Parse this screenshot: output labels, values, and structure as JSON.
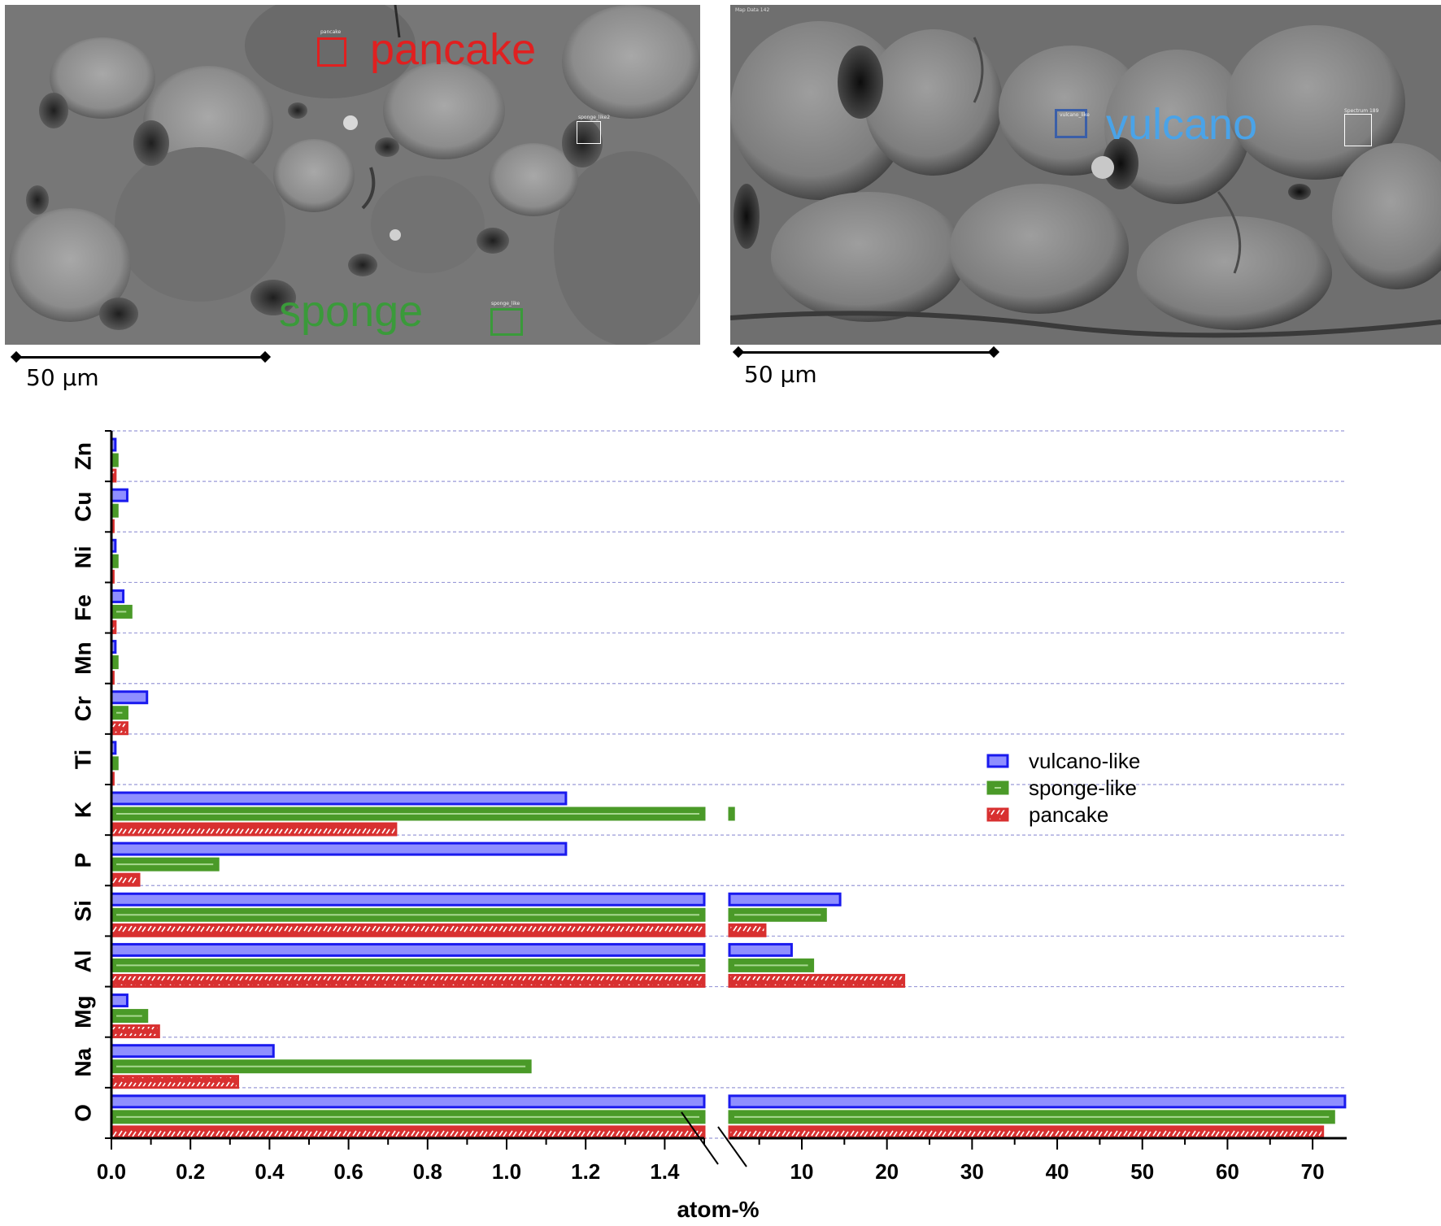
{
  "micrographs": {
    "left": {
      "regions": [
        {
          "label": "pancake",
          "small_label": "pancake",
          "color": "#e02020"
        },
        {
          "label": "sponge",
          "small_label": "sponge_like",
          "color": "#3a9a3a"
        },
        {
          "small_label": "sponge_like2",
          "color": "#ffffff"
        }
      ],
      "scale_bar": "50 µm"
    },
    "right": {
      "corner_label": "Map Data 142",
      "regions": [
        {
          "label": "vulcano",
          "small_label": "vulcano_like",
          "color": "#4aa3e8"
        },
        {
          "small_label": "Spectrum 189",
          "color": "#ffffff"
        }
      ],
      "scale_bar": "50 µm"
    }
  },
  "chart_data": {
    "type": "bar",
    "orientation": "horizontal",
    "xlabel": "atom-%",
    "x_axis_break": true,
    "x_segments": [
      {
        "range": [
          0,
          1.5
        ],
        "ticks": [
          "0.0",
          "0.2",
          "0.4",
          "0.6",
          "0.8",
          "1.0",
          "1.2",
          "1.4"
        ]
      },
      {
        "range": [
          1.5,
          74
        ],
        "ticks": [
          "10",
          "20",
          "30",
          "40",
          "50",
          "60",
          "70"
        ]
      }
    ],
    "categories": [
      "Zn",
      "Cu",
      "Ni",
      "Fe",
      "Mn",
      "Cr",
      "Ti",
      "K",
      "P",
      "Si",
      "Al",
      "Mg",
      "Na",
      "O"
    ],
    "series": [
      {
        "name": "vulcano-like",
        "color": "#1a1aee",
        "fill": "#8f8fff",
        "values": [
          0.01,
          0.04,
          0.01,
          0.03,
          0.01,
          0.09,
          0.01,
          1.15,
          1.15,
          14.5,
          8.8,
          0.04,
          0.41,
          73.8
        ]
      },
      {
        "name": "sponge-like",
        "color": "#4a9a28",
        "fill": "#4a9a28",
        "values": [
          0.015,
          0.015,
          0.015,
          0.05,
          0.015,
          0.04,
          0.015,
          2.0,
          0.27,
          12.8,
          11.3,
          0.09,
          1.06,
          72.5
        ]
      },
      {
        "name": "pancake",
        "color": "#d83030",
        "fill": "#e56060",
        "values": [
          0.01,
          0.005,
          0.005,
          0.01,
          0.005,
          0.04,
          0.005,
          0.72,
          0.07,
          5.7,
          22.0,
          0.12,
          0.32,
          71.2
        ]
      }
    ],
    "legend": {
      "position": "right"
    },
    "grid": "horizontal-dashed"
  }
}
